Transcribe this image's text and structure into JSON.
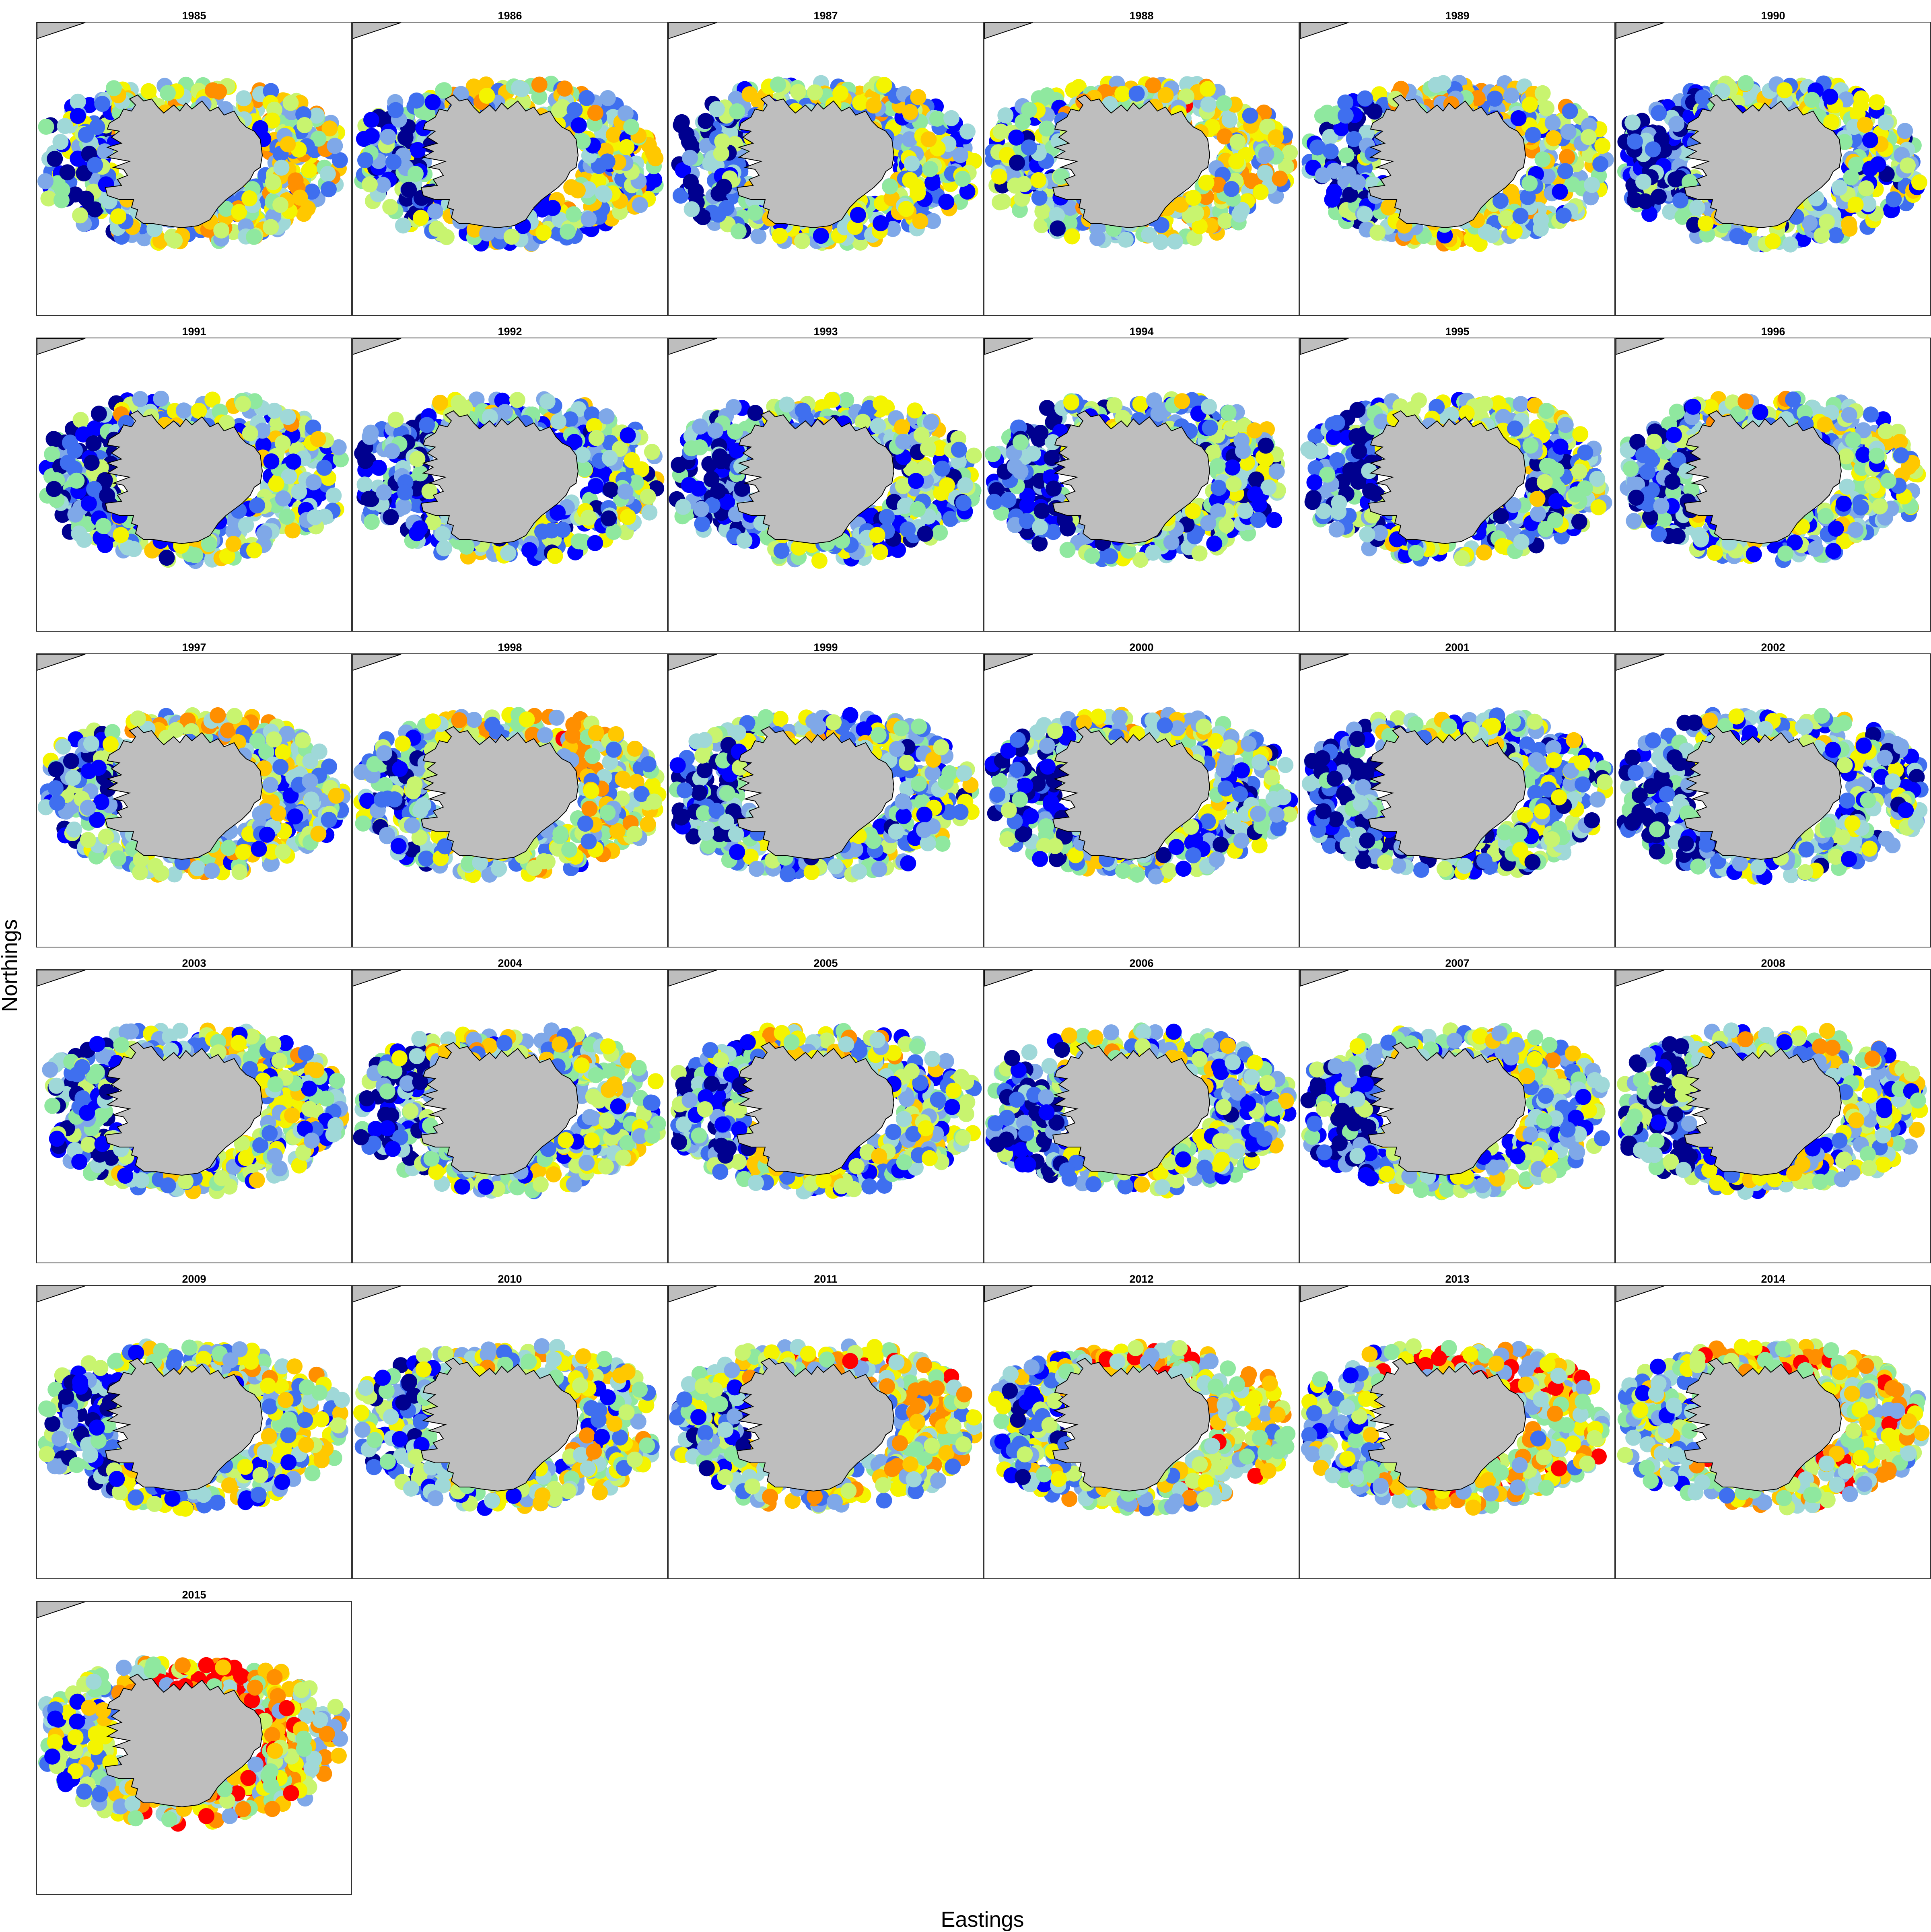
{
  "figure": {
    "xlabel": "Eastings",
    "ylabel": "Northings"
  },
  "panels": [
    {
      "year": "1985",
      "palette_bias": 0.52
    },
    {
      "year": "1986",
      "palette_bias": 0.48
    },
    {
      "year": "1987",
      "palette_bias": 0.45
    },
    {
      "year": "1988",
      "palette_bias": 0.55
    },
    {
      "year": "1989",
      "palette_bias": 0.5
    },
    {
      "year": "1990",
      "palette_bias": 0.42
    },
    {
      "year": "1991",
      "palette_bias": 0.44
    },
    {
      "year": "1992",
      "palette_bias": 0.4
    },
    {
      "year": "1993",
      "palette_bias": 0.38
    },
    {
      "year": "1994",
      "palette_bias": 0.37
    },
    {
      "year": "1995",
      "palette_bias": 0.4
    },
    {
      "year": "1996",
      "palette_bias": 0.44
    },
    {
      "year": "1997",
      "palette_bias": 0.5
    },
    {
      "year": "1998",
      "palette_bias": 0.52
    },
    {
      "year": "1999",
      "palette_bias": 0.43
    },
    {
      "year": "2000",
      "palette_bias": 0.42
    },
    {
      "year": "2001",
      "palette_bias": 0.36
    },
    {
      "year": "2002",
      "palette_bias": 0.38
    },
    {
      "year": "2003",
      "palette_bias": 0.45
    },
    {
      "year": "2004",
      "palette_bias": 0.46
    },
    {
      "year": "2005",
      "palette_bias": 0.47
    },
    {
      "year": "2006",
      "palette_bias": 0.43
    },
    {
      "year": "2007",
      "palette_bias": 0.45
    },
    {
      "year": "2008",
      "palette_bias": 0.44
    },
    {
      "year": "2009",
      "palette_bias": 0.46
    },
    {
      "year": "2010",
      "palette_bias": 0.5
    },
    {
      "year": "2011",
      "palette_bias": 0.55
    },
    {
      "year": "2012",
      "palette_bias": 0.58
    },
    {
      "year": "2013",
      "palette_bias": 0.6
    },
    {
      "year": "2014",
      "palette_bias": 0.6
    },
    {
      "year": "2015",
      "palette_bias": 0.63
    }
  ],
  "colors": {
    "land": "#bebebe",
    "coastline": "#000000",
    "palette": [
      "#00008f",
      "#0000ff",
      "#3f6fef",
      "#7fa8e8",
      "#9fd8d8",
      "#8fe89f",
      "#c8f46f",
      "#f4f400",
      "#ffc800",
      "#ff8f00",
      "#ff0000"
    ]
  }
}
